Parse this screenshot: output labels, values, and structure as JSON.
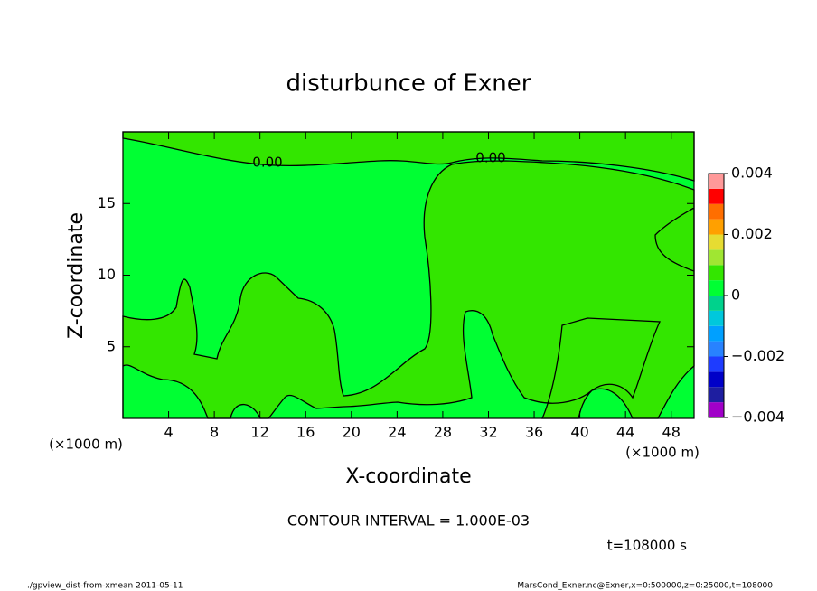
{
  "chart_data": {
    "type": "contour",
    "title": "disturbunce of Exner",
    "x_label": "X-coordinate",
    "y_label": "Z-coordinate",
    "x_unit": "(×1000 m)",
    "y_unit": "(×1000 m)",
    "xlim": [
      0,
      50
    ],
    "xticks": [
      4,
      8,
      12,
      16,
      20,
      24,
      28,
      32,
      36,
      40,
      44,
      48
    ],
    "ylim": [
      0,
      20
    ],
    "yticks": [
      5,
      10,
      15
    ],
    "contour_labels": [
      "0.00",
      "0.00"
    ],
    "colorbar": {
      "zlim": [
        -0.004,
        0.004
      ],
      "zticks": [
        {
          "value": -0.004,
          "label": "−0.004"
        },
        {
          "value": -0.002,
          "label": "−0.002"
        },
        0,
        0.002,
        0.004
      ],
      "colors": [
        "#a000c8",
        "#1e1ea0",
        "#0000c8",
        "#1e3cff",
        "#2882ff",
        "#00a0ff",
        "#00c8dc",
        "#00d28c",
        "#00ff33",
        "#33e600",
        "#a0e632",
        "#e6dc32",
        "#ffa000",
        "#ff6e00",
        "#ff0000",
        "#ff9999"
      ]
    },
    "contour_interval": "CONTOUR INTERVAL = 1.000E-03",
    "time_label": "t=108000 s",
    "footer_left": "./gpview_dist-from-xmean  2011-05-11",
    "footer_right": "MarsCond_Exner.nc@Exner,x=0:500000,z=0:25000,t=108000"
  }
}
